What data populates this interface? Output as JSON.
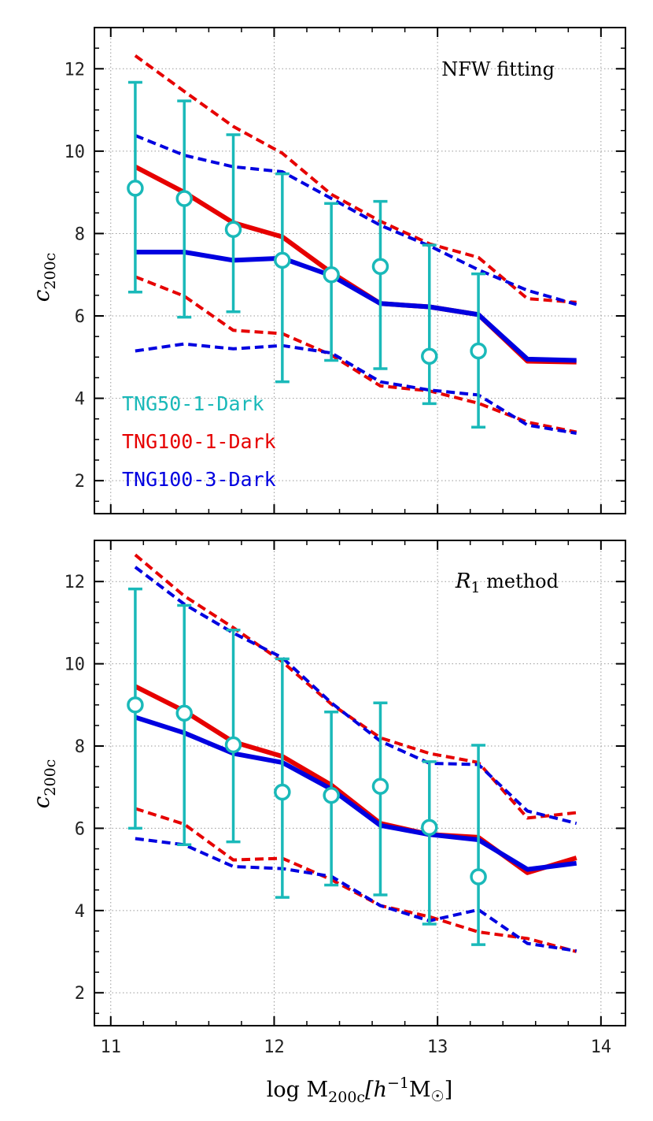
{
  "colors": {
    "tng50": "#1ab9b9",
    "tng100_1": "#e60000",
    "tng100_3": "#0000e0"
  },
  "legend": [
    {
      "label": "TNG50-1-Dark",
      "color": "#1ab9b9"
    },
    {
      "label": "TNG100-1-Dark",
      "color": "#e60000"
    },
    {
      "label": "TNG100-3-Dark",
      "color": "#0000e0"
    }
  ],
  "xlabel": {
    "main": "log M",
    "sub": "200c",
    "units": "[h",
    "exp": "−1",
    "units2": "M",
    "sun": "☉",
    "close": "]"
  },
  "chart_data": [
    {
      "type": "line",
      "title": "NFW fitting",
      "ylabel": "c",
      "ylabel_sub": "200c",
      "xlim": [
        10.9,
        14.15
      ],
      "ylim": [
        1.2,
        13.0
      ],
      "xticks": [
        11,
        12,
        13,
        14
      ],
      "yticks": [
        2,
        4,
        6,
        8,
        10,
        12
      ],
      "series": [
        {
          "name": "TNG100-1-Dark median",
          "style": "solid",
          "color_key": "tng100_1",
          "x": [
            11.15,
            11.45,
            11.75,
            12.05,
            12.35,
            12.65,
            12.95,
            13.25,
            13.55,
            13.85
          ],
          "y": [
            9.62,
            9.0,
            8.26,
            7.92,
            7.05,
            6.3,
            6.22,
            6.03,
            4.9,
            4.88
          ]
        },
        {
          "name": "TNG100-3-Dark median",
          "style": "solid",
          "color_key": "tng100_3",
          "x": [
            11.15,
            11.45,
            11.75,
            12.05,
            12.35,
            12.65,
            12.95,
            13.25,
            13.55,
            13.85
          ],
          "y": [
            7.55,
            7.55,
            7.35,
            7.4,
            6.98,
            6.3,
            6.22,
            6.03,
            4.95,
            4.92
          ]
        },
        {
          "name": "TNG100-1-Dark upper",
          "style": "dashed",
          "color_key": "tng100_1",
          "x": [
            11.15,
            11.45,
            11.75,
            12.05,
            12.35,
            12.65,
            12.95,
            13.25,
            13.55,
            13.85
          ],
          "y": [
            12.32,
            11.45,
            10.6,
            9.95,
            8.95,
            8.3,
            7.75,
            7.42,
            6.42,
            6.33
          ]
        },
        {
          "name": "TNG100-3-Dark upper",
          "style": "dashed",
          "color_key": "tng100_3",
          "x": [
            11.15,
            11.45,
            11.75,
            12.05,
            12.35,
            12.65,
            12.95,
            13.25,
            13.55,
            13.85
          ],
          "y": [
            10.38,
            9.9,
            9.62,
            9.5,
            8.85,
            8.2,
            7.7,
            7.12,
            6.62,
            6.28
          ]
        },
        {
          "name": "TNG100-1-Dark lower",
          "style": "dashed",
          "color_key": "tng100_1",
          "x": [
            11.15,
            11.45,
            11.75,
            12.05,
            12.35,
            12.65,
            12.95,
            13.25,
            13.55,
            13.85
          ],
          "y": [
            6.95,
            6.48,
            5.65,
            5.57,
            5.05,
            4.3,
            4.18,
            3.88,
            3.42,
            3.18
          ]
        },
        {
          "name": "TNG100-3-Dark lower",
          "style": "dashed",
          "color_key": "tng100_3",
          "x": [
            11.15,
            11.45,
            11.75,
            12.05,
            12.35,
            12.65,
            12.95,
            13.25,
            13.55,
            13.85
          ],
          "y": [
            5.15,
            5.32,
            5.2,
            5.28,
            5.1,
            4.4,
            4.2,
            4.08,
            3.35,
            3.15
          ]
        }
      ],
      "points": {
        "name": "TNG50-1-Dark",
        "color_key": "tng50",
        "x": [
          11.15,
          11.45,
          11.75,
          12.05,
          12.35,
          12.65,
          12.95,
          13.25
        ],
        "y": [
          9.1,
          8.85,
          8.1,
          7.35,
          7.0,
          7.2,
          5.02,
          5.15
        ],
        "yerr_low": [
          6.58,
          5.97,
          6.1,
          4.4,
          4.92,
          4.72,
          3.87,
          3.3
        ],
        "yerr_high": [
          11.67,
          11.22,
          10.4,
          9.45,
          8.73,
          8.78,
          7.72,
          7.02
        ]
      }
    },
    {
      "type": "line",
      "title": "R₁ method",
      "title_main": "R",
      "title_sub": "1",
      "title_rest": " method",
      "ylabel": "c",
      "ylabel_sub": "200c",
      "xlim": [
        10.9,
        14.15
      ],
      "ylim": [
        1.2,
        13.0
      ],
      "xticks": [
        11,
        12,
        13,
        14
      ],
      "yticks": [
        2,
        4,
        6,
        8,
        10,
        12
      ],
      "series": [
        {
          "name": "TNG100-1-Dark median",
          "style": "solid",
          "color_key": "tng100_1",
          "x": [
            11.15,
            11.45,
            11.75,
            12.05,
            12.35,
            12.65,
            12.95,
            13.25,
            13.55,
            13.85
          ],
          "y": [
            9.45,
            8.85,
            8.1,
            7.75,
            7.05,
            6.12,
            5.85,
            5.78,
            4.92,
            5.28
          ]
        },
        {
          "name": "TNG100-3-Dark median",
          "style": "solid",
          "color_key": "tng100_3",
          "x": [
            11.15,
            11.45,
            11.75,
            12.05,
            12.35,
            12.65,
            12.95,
            13.25,
            13.55,
            13.85
          ],
          "y": [
            8.7,
            8.32,
            7.82,
            7.6,
            6.95,
            6.07,
            5.85,
            5.72,
            5.0,
            5.15
          ]
        },
        {
          "name": "TNG100-1-Dark upper",
          "style": "dashed",
          "color_key": "tng100_1",
          "x": [
            11.15,
            11.45,
            11.75,
            12.05,
            12.35,
            12.65,
            12.95,
            13.25,
            13.55,
            13.85
          ],
          "y": [
            12.65,
            11.65,
            10.88,
            10.05,
            9.02,
            8.2,
            7.82,
            7.6,
            6.25,
            6.38
          ]
        },
        {
          "name": "TNG100-3-Dark upper",
          "style": "dashed",
          "color_key": "tng100_3",
          "x": [
            11.15,
            11.45,
            11.75,
            12.05,
            12.35,
            12.65,
            12.95,
            13.25,
            13.55,
            13.85
          ],
          "y": [
            12.35,
            11.45,
            10.75,
            10.15,
            9.05,
            8.12,
            7.58,
            7.55,
            6.42,
            6.12
          ]
        },
        {
          "name": "TNG100-1-Dark lower",
          "style": "dashed",
          "color_key": "tng100_1",
          "x": [
            11.15,
            11.45,
            11.75,
            12.05,
            12.35,
            12.65,
            12.95,
            13.25,
            13.55,
            13.85
          ],
          "y": [
            6.48,
            6.1,
            5.23,
            5.27,
            4.75,
            4.12,
            3.85,
            3.48,
            3.32,
            3.0
          ]
        },
        {
          "name": "TNG100-3-Dark lower",
          "style": "dashed",
          "color_key": "tng100_3",
          "x": [
            11.15,
            11.45,
            11.75,
            12.05,
            12.35,
            12.65,
            12.95,
            13.25,
            13.55,
            13.85
          ],
          "y": [
            5.75,
            5.6,
            5.07,
            5.02,
            4.83,
            4.12,
            3.75,
            4.02,
            3.2,
            3.02
          ]
        }
      ],
      "points": {
        "name": "TNG50-1-Dark",
        "color_key": "tng50",
        "x": [
          11.15,
          11.45,
          11.75,
          12.05,
          12.35,
          12.65,
          12.95,
          13.25
        ],
        "y": [
          9.0,
          8.8,
          8.03,
          6.88,
          6.8,
          7.02,
          6.02,
          4.82
        ],
        "yerr_low": [
          6.0,
          5.6,
          5.67,
          4.32,
          4.62,
          4.38,
          3.67,
          3.17
        ],
        "yerr_high": [
          11.82,
          11.42,
          10.82,
          10.12,
          8.83,
          9.05,
          7.62,
          8.02
        ]
      }
    }
  ]
}
